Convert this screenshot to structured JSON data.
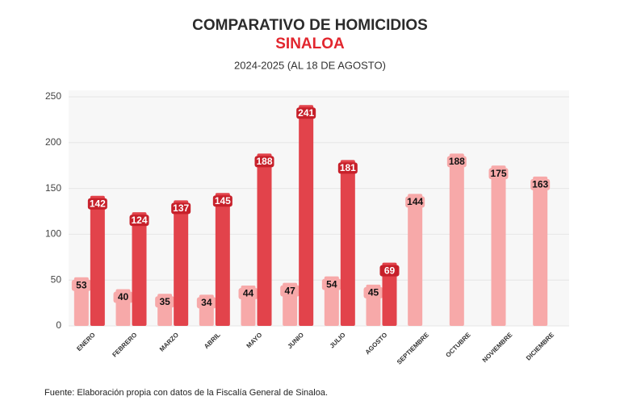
{
  "chart_data": {
    "type": "bar",
    "title": "COMPARATIVO DE HOMICIDIOS",
    "subtitle": "SINALOA",
    "subtitle2": "2024-2025 (AL 18 DE AGOSTO)",
    "source": "Fuente: Elaboración propia con datos de la Fiscalía General de Sinaloa.",
    "categories": [
      "ENERO",
      "FEBRERO",
      "MARZO",
      "ABRIL",
      "MAYO",
      "JUNIO",
      "JULIO",
      "AGOSTO",
      "SEPTIEMBRE",
      "OCTUBRE",
      "NOVIEMBRE",
      "DICIEMBRE"
    ],
    "series": [
      {
        "color": "#f7a9a9",
        "values": [
          53,
          40,
          35,
          34,
          44,
          47,
          54,
          45,
          144,
          188,
          175,
          163
        ]
      },
      {
        "color": "#e2434b",
        "values": [
          142,
          124,
          137,
          145,
          188,
          241,
          181,
          69,
          null,
          null,
          null,
          null
        ]
      }
    ],
    "ylim": [
      0,
      250
    ],
    "yticks": [
      0,
      50,
      100,
      150,
      200,
      250
    ],
    "grid": true
  }
}
